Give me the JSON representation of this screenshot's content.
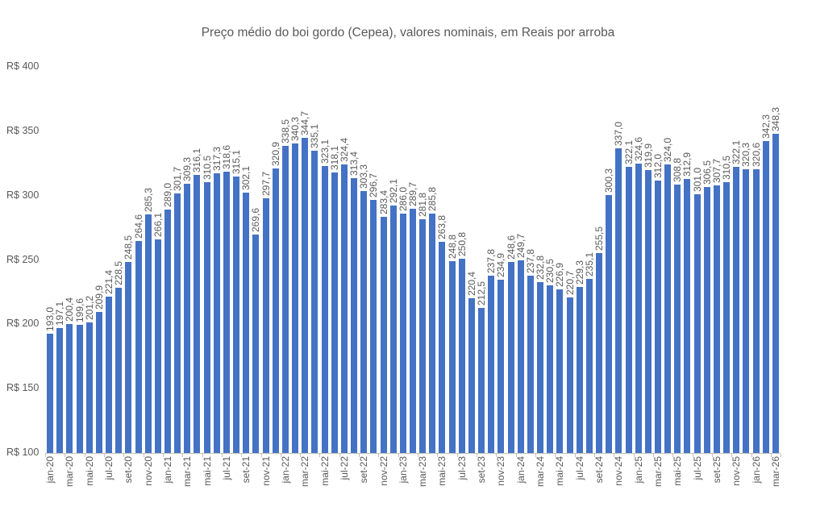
{
  "chart_data": {
    "type": "bar",
    "title": "Preço médio do boi gordo (Cepea), valores nominais, em Reais por arroba",
    "categories": [
      "jan-20",
      "fev-20",
      "mar-20",
      "abr-20",
      "mai-20",
      "jun-20",
      "jul-20",
      "ago-20",
      "set-20",
      "out-20",
      "nov-20",
      "dez-20",
      "jan-21",
      "fev-21",
      "mar-21",
      "abr-21",
      "mai-21",
      "jun-21",
      "jul-21",
      "ago-21",
      "set-21",
      "out-21",
      "nov-21",
      "dez-21",
      "jan-22",
      "fev-22",
      "mar-22",
      "abr-22",
      "mai-22",
      "jun-22",
      "jul-22",
      "ago-22",
      "set-22",
      "out-22",
      "nov-22",
      "dez-22",
      "jan-23",
      "fev-23",
      "mar-23",
      "abr-23",
      "mai-23",
      "jun-23",
      "jul-23",
      "ago-23",
      "set-23",
      "out-23",
      "nov-23",
      "dez-23",
      "jan-24",
      "fev-24",
      "mar-24",
      "abr-24",
      "mai-24",
      "jun-24",
      "jul-24",
      "ago-24",
      "set-24",
      "out-24",
      "nov-24",
      "dez-24",
      "jan-25",
      "fev-25",
      "mar-25",
      "abr-25",
      "mai-25",
      "jun-25",
      "jul-25",
      "ago-25",
      "set-25",
      "out-25",
      "nov-25",
      "dez-25",
      "jan-26",
      "fev-26",
      "mar-26"
    ],
    "values": [
      193.0,
      197.1,
      200.4,
      199.6,
      201.2,
      209.9,
      221.4,
      228.5,
      248.5,
      264.6,
      285.3,
      266.1,
      289.0,
      301.7,
      309.3,
      316.1,
      310.5,
      317.3,
      318.6,
      315.1,
      302.1,
      269.6,
      297.7,
      320.9,
      338.5,
      340.3,
      344.7,
      335.1,
      323.1,
      318.1,
      324.4,
      313.4,
      303.3,
      296.7,
      283.4,
      292.1,
      286.0,
      289.7,
      281.8,
      285.8,
      263.8,
      248.8,
      250.8,
      220.4,
      212.5,
      237.8,
      234.9,
      248.6,
      249.7,
      237.8,
      232.8,
      230.5,
      226.9,
      220.7,
      229.3,
      235.1,
      255.5,
      300.3,
      337.0,
      322.1,
      324.6,
      319.9,
      312.0,
      324.0,
      308.8,
      312.9,
      301.0,
      306.5,
      307.7,
      310.5,
      322.1,
      320.3,
      320.6,
      342.3,
      348.3
    ],
    "value_labels": [
      "193,0",
      "197,1",
      "200,4",
      "199,6",
      "201,2",
      "209,9",
      "221,4",
      "228,5",
      "248,5",
      "264,6",
      "285,3",
      "266,1",
      "289,0",
      "301,7",
      "309,3",
      "316,1",
      "310,5",
      "317,3",
      "318,6",
      "315,1",
      "302,1",
      "269,6",
      "297,7",
      "320,9",
      "338,5",
      "340,3",
      "344,7",
      "335,1",
      "323,1",
      "318,1",
      "324,4",
      "313,4",
      "303,3",
      "296,7",
      "283,4",
      "292,1",
      "286,0",
      "289,7",
      "281,8",
      "285,8",
      "263,8",
      "248,8",
      "250,8",
      "220,4",
      "212,5",
      "237,8",
      "234,9",
      "248,6",
      "249,7",
      "237,8",
      "232,8",
      "230,5",
      "226,9",
      "220,7",
      "229,3",
      "235,1",
      "255,5",
      "300,3",
      "337,0",
      "322,1",
      "324,6",
      "319,9",
      "312,0",
      "324,0",
      "308,8",
      "312,9",
      "301,0",
      "306,5",
      "307,7",
      "310,5",
      "322,1",
      "320,3",
      "320,6",
      "342,3",
      "348,3"
    ],
    "x_tick_interval": 2,
    "x_tick_labels": [
      "jan-20",
      "mar-20",
      "mai-20",
      "jul-20",
      "set-20",
      "nov-20",
      "jan-21",
      "mar-21",
      "mai-21",
      "jul-21",
      "set-21",
      "nov-21",
      "jan-22",
      "mar-22",
      "mai-22",
      "jul-22",
      "set-22",
      "nov-22",
      "jan-23",
      "mar-23",
      "mai-23",
      "jul-23",
      "set-23",
      "nov-23",
      "jan-24",
      "mar-24",
      "mai-24",
      "jul-24",
      "set-24",
      "nov-24",
      "jan-25",
      "mar-25",
      "mai-25",
      "jul-25",
      "set-25",
      "nov-25",
      "jan-26",
      "mar-26"
    ],
    "y_axis": {
      "tick_labels": [
        "R$ 400",
        "R$ 350",
        "R$ 300",
        "R$ 250",
        "R$ 200",
        "R$ 150",
        "R$ 100"
      ],
      "tick_values": [
        400,
        350,
        300,
        250,
        200,
        150,
        100
      ],
      "min": 100,
      "max": 400,
      "step": 50
    },
    "grid": false,
    "legend": "none",
    "colors": {
      "bar": "#4472C4",
      "text": "#595959",
      "axis": "#BFBFBF",
      "background": "#FFFFFF"
    }
  }
}
